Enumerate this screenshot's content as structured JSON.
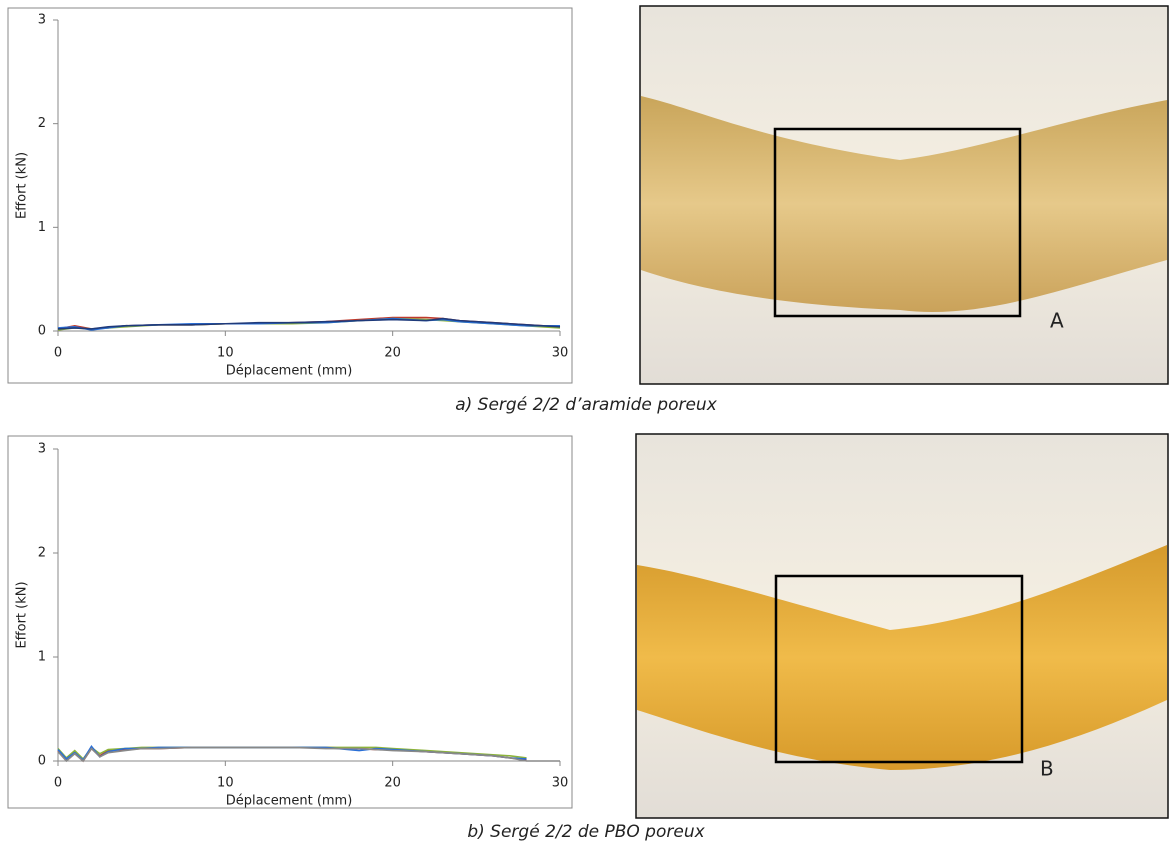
{
  "chart_data": [
    {
      "type": "line",
      "title": "a) Sergé 2/2 d’aramide poreux",
      "x_label": "Déplacement (mm)",
      "y_label": "Effort (kN)",
      "xlim": [
        0,
        30
      ],
      "ylim": [
        0,
        3
      ],
      "xticks": [
        0,
        10,
        20,
        30
      ],
      "yticks": [
        0,
        1,
        2,
        3
      ],
      "grid": false,
      "x": [
        0,
        1,
        2,
        3,
        4,
        6,
        8,
        10,
        12,
        14,
        16,
        18,
        20,
        22,
        23,
        24,
        26,
        28,
        30
      ],
      "series": [
        {
          "color": "#c0392b",
          "values": [
            0.02,
            0.05,
            0.02,
            0.03,
            0.05,
            0.06,
            0.06,
            0.07,
            0.07,
            0.08,
            0.09,
            0.11,
            0.13,
            0.13,
            0.12,
            0.1,
            0.08,
            0.06,
            0.04
          ]
        },
        {
          "color": "#8db33a",
          "values": [
            0.01,
            0.03,
            0.02,
            0.03,
            0.04,
            0.06,
            0.06,
            0.07,
            0.07,
            0.07,
            0.08,
            0.1,
            0.12,
            0.11,
            0.1,
            0.09,
            0.07,
            0.05,
            0.03
          ]
        },
        {
          "color": "#2a6fd6",
          "values": [
            0.03,
            0.04,
            0.01,
            0.03,
            0.05,
            0.06,
            0.07,
            0.07,
            0.07,
            0.08,
            0.08,
            0.1,
            0.12,
            0.1,
            0.11,
            0.09,
            0.07,
            0.05,
            0.05
          ]
        },
        {
          "color": "#1f3a7a",
          "values": [
            0.02,
            0.03,
            0.02,
            0.04,
            0.05,
            0.06,
            0.06,
            0.07,
            0.08,
            0.08,
            0.09,
            0.1,
            0.11,
            0.1,
            0.12,
            0.1,
            0.08,
            0.06,
            0.04
          ]
        }
      ]
    },
    {
      "type": "line",
      "title": "b) Sergé 2/2 de PBO poreux",
      "x_label": "Déplacement (mm)",
      "y_label": "Effort (kN)",
      "xlim": [
        0,
        30
      ],
      "ylim": [
        0,
        3
      ],
      "xticks": [
        0,
        10,
        20,
        30
      ],
      "yticks": [
        0,
        1,
        2,
        3
      ],
      "grid": false,
      "x": [
        0,
        0.5,
        1,
        1.5,
        2,
        2.5,
        3,
        4,
        5,
        6,
        8,
        10,
        12,
        14,
        16,
        18,
        19,
        20,
        22,
        24,
        26,
        27,
        28,
        29,
        30
      ],
      "series": [
        {
          "color": "#c0392b",
          "values": [
            0.1,
            0.01,
            0.09,
            0.0,
            0.12,
            0.05,
            0.1,
            0.11,
            0.12,
            0.12,
            0.13,
            0.13,
            0.13,
            0.13,
            0.13,
            0.12,
            0.11,
            0.11,
            0.09,
            0.07,
            0.05,
            0.03,
            0.01,
            null,
            null
          ]
        },
        {
          "color": "#8db33a",
          "values": [
            0.12,
            0.03,
            0.1,
            0.02,
            0.13,
            0.07,
            0.11,
            0.12,
            0.13,
            0.13,
            0.13,
            0.13,
            0.13,
            0.13,
            0.13,
            0.13,
            0.13,
            0.12,
            0.1,
            0.08,
            0.06,
            0.05,
            0.03,
            null,
            null
          ]
        },
        {
          "color": "#2a6fd6",
          "values": [
            0.11,
            0.02,
            0.08,
            0.01,
            0.14,
            0.04,
            0.09,
            0.12,
            0.12,
            0.13,
            0.13,
            0.13,
            0.13,
            0.13,
            0.13,
            0.1,
            0.12,
            0.11,
            0.09,
            0.07,
            0.05,
            0.03,
            0.02,
            null,
            null
          ]
        },
        {
          "color": "#888888",
          "values": [
            0.09,
            0.0,
            0.07,
            0.0,
            0.12,
            0.04,
            0.08,
            0.1,
            0.12,
            0.12,
            0.13,
            0.13,
            0.13,
            0.13,
            0.12,
            0.12,
            0.11,
            0.1,
            0.09,
            0.07,
            0.05,
            0.03,
            0.0,
            0.0,
            0.0
          ]
        }
      ]
    }
  ],
  "photos": [
    {
      "label": "A"
    },
    {
      "label": "B"
    }
  ]
}
